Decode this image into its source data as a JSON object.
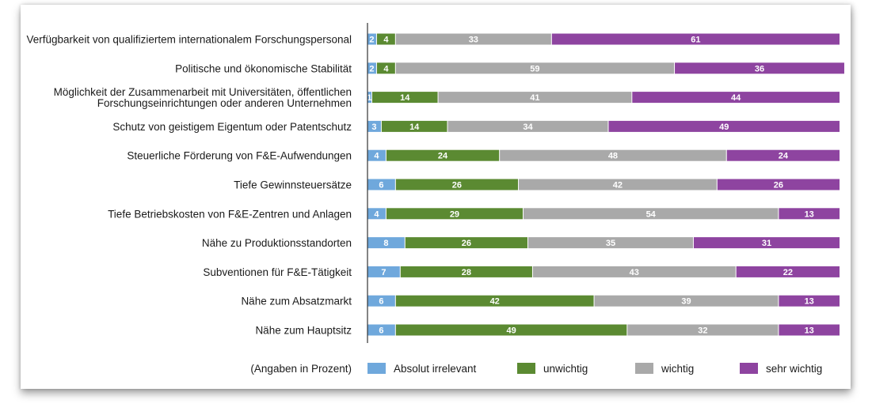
{
  "chart_data": {
    "type": "bar",
    "orientation": "horizontal",
    "stacked": true,
    "categories": [
      "Verfügbarkeit von qualifiziertem internationalem Forschungspersonal",
      "Politische und ökonomische Stabilität",
      "Möglichkeit der Zusammenarbeit mit Universitäten, öffentlichen Forschungseinrichtungen oder anderen Unternehmen",
      "Schutz von geistigem Eigentum oder Patentschutz",
      "Steuerliche Förderung von F&E-Aufwendungen",
      "Tiefe Gewinnsteuersätze",
      "Tiefe Betriebskosten von F&E-Zentren und Anlagen",
      "Nähe zu Produktionsstandorten",
      "Subventionen für F&E-Tätigkeit",
      "Nähe zum Absatzmarkt",
      "Nähe zum Hauptsitz"
    ],
    "category_lines": [
      [
        "Verfügbarkeit von qualifiziertem internationalem Forschungspersonal"
      ],
      [
        "Politische und ökonomische Stabilität"
      ],
      [
        "Möglichkeit der Zusammenarbeit mit Universitäten, öffentlichen",
        "Forschungseinrichtungen oder anderen Unternehmen"
      ],
      [
        "Schutz von geistigem Eigentum oder Patentschutz"
      ],
      [
        "Steuerliche Förderung von F&E-Aufwendungen"
      ],
      [
        "Tiefe Gewinnsteuersätze"
      ],
      [
        "Tiefe Betriebskosten von F&E-Zentren und Anlagen"
      ],
      [
        "Nähe zu Produktionsstandorten"
      ],
      [
        "Subventionen für F&E-Tätigkeit"
      ],
      [
        "Nähe zum Absatzmarkt"
      ],
      [
        "Nähe zum Hauptsitz"
      ]
    ],
    "series": [
      {
        "name": "Absolut irrelevant",
        "color": "#6fa8dc",
        "values": [
          2,
          2,
          1,
          3,
          4,
          6,
          4,
          8,
          7,
          6,
          6
        ]
      },
      {
        "name": "unwichtig",
        "color": "#5b8a32",
        "values": [
          4,
          4,
          14,
          14,
          24,
          26,
          29,
          26,
          28,
          42,
          49
        ]
      },
      {
        "name": "wichtig",
        "color": "#a9a9a9",
        "values": [
          33,
          59,
          41,
          34,
          48,
          42,
          54,
          35,
          43,
          39,
          32
        ]
      },
      {
        "name": "sehr wichtig",
        "color": "#8e44a0",
        "values": [
          61,
          36,
          44,
          49,
          24,
          26,
          13,
          31,
          22,
          13,
          13
        ]
      }
    ],
    "xlim": [
      0,
      100
    ],
    "legend_note": "(Angaben in Prozent)",
    "legend_placement": "bottom",
    "grid": false
  }
}
